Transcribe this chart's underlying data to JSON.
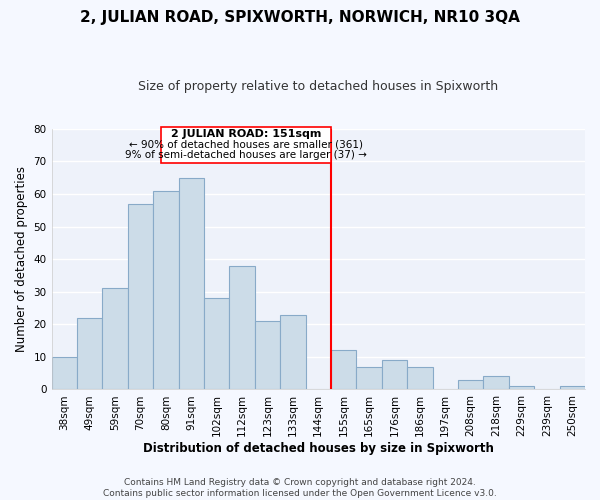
{
  "title": "2, JULIAN ROAD, SPIXWORTH, NORWICH, NR10 3QA",
  "subtitle": "Size of property relative to detached houses in Spixworth",
  "xlabel": "Distribution of detached houses by size in Spixworth",
  "ylabel": "Number of detached properties",
  "footer_line1": "Contains HM Land Registry data © Crown copyright and database right 2024.",
  "footer_line2": "Contains public sector information licensed under the Open Government Licence v3.0.",
  "bar_labels": [
    "38sqm",
    "49sqm",
    "59sqm",
    "70sqm",
    "80sqm",
    "91sqm",
    "102sqm",
    "112sqm",
    "123sqm",
    "133sqm",
    "144sqm",
    "155sqm",
    "165sqm",
    "176sqm",
    "186sqm",
    "197sqm",
    "208sqm",
    "218sqm",
    "229sqm",
    "239sqm",
    "250sqm"
  ],
  "bar_values": [
    10,
    22,
    31,
    57,
    61,
    65,
    28,
    38,
    21,
    23,
    0,
    12,
    7,
    9,
    7,
    0,
    3,
    4,
    1,
    0,
    1
  ],
  "bar_color": "#ccdce8",
  "bar_edge_color": "#88aac8",
  "ylim": [
    0,
    80
  ],
  "yticks": [
    0,
    10,
    20,
    30,
    40,
    50,
    60,
    70,
    80
  ],
  "property_label": "2 JULIAN ROAD: 151sqm",
  "annotation_line1": "← 90% of detached houses are smaller (361)",
  "annotation_line2": "9% of semi-detached houses are larger (37) →",
  "vline_x_index": 10.5,
  "background_color": "#f5f8ff",
  "plot_bg_color": "#eef2fa",
  "grid_color": "#ffffff",
  "title_fontsize": 11,
  "subtitle_fontsize": 9,
  "axis_label_fontsize": 8.5,
  "tick_fontsize": 7.5,
  "annotation_fontsize": 8,
  "footer_fontsize": 6.5
}
